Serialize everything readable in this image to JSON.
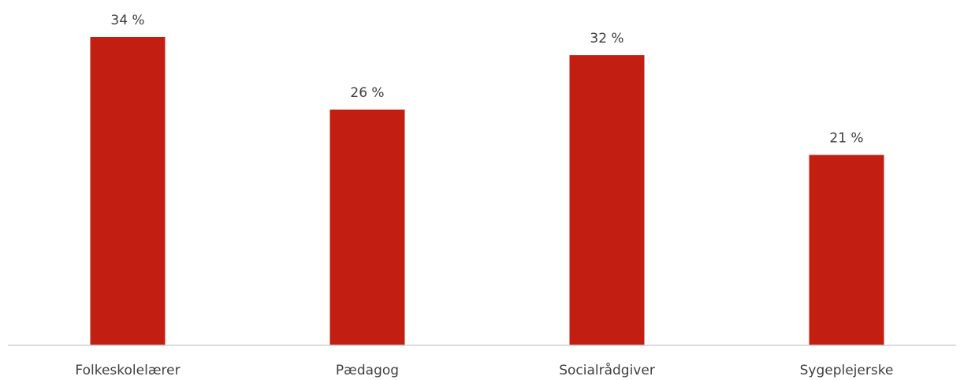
{
  "chart_data": {
    "type": "bar",
    "categories": [
      "Folkeskolelærer",
      "Pædagog",
      "Socialrådgiver",
      "Sygeplejerske"
    ],
    "values": [
      34,
      26,
      32,
      21
    ],
    "value_labels": [
      "34 %",
      "26 %",
      "32 %",
      "21 %"
    ],
    "ylim": [
      0,
      34
    ],
    "bar_color": "#c21f12",
    "axis_color": "#d0d0d0",
    "text_color": "#404040",
    "grid": false,
    "legend": "none"
  }
}
